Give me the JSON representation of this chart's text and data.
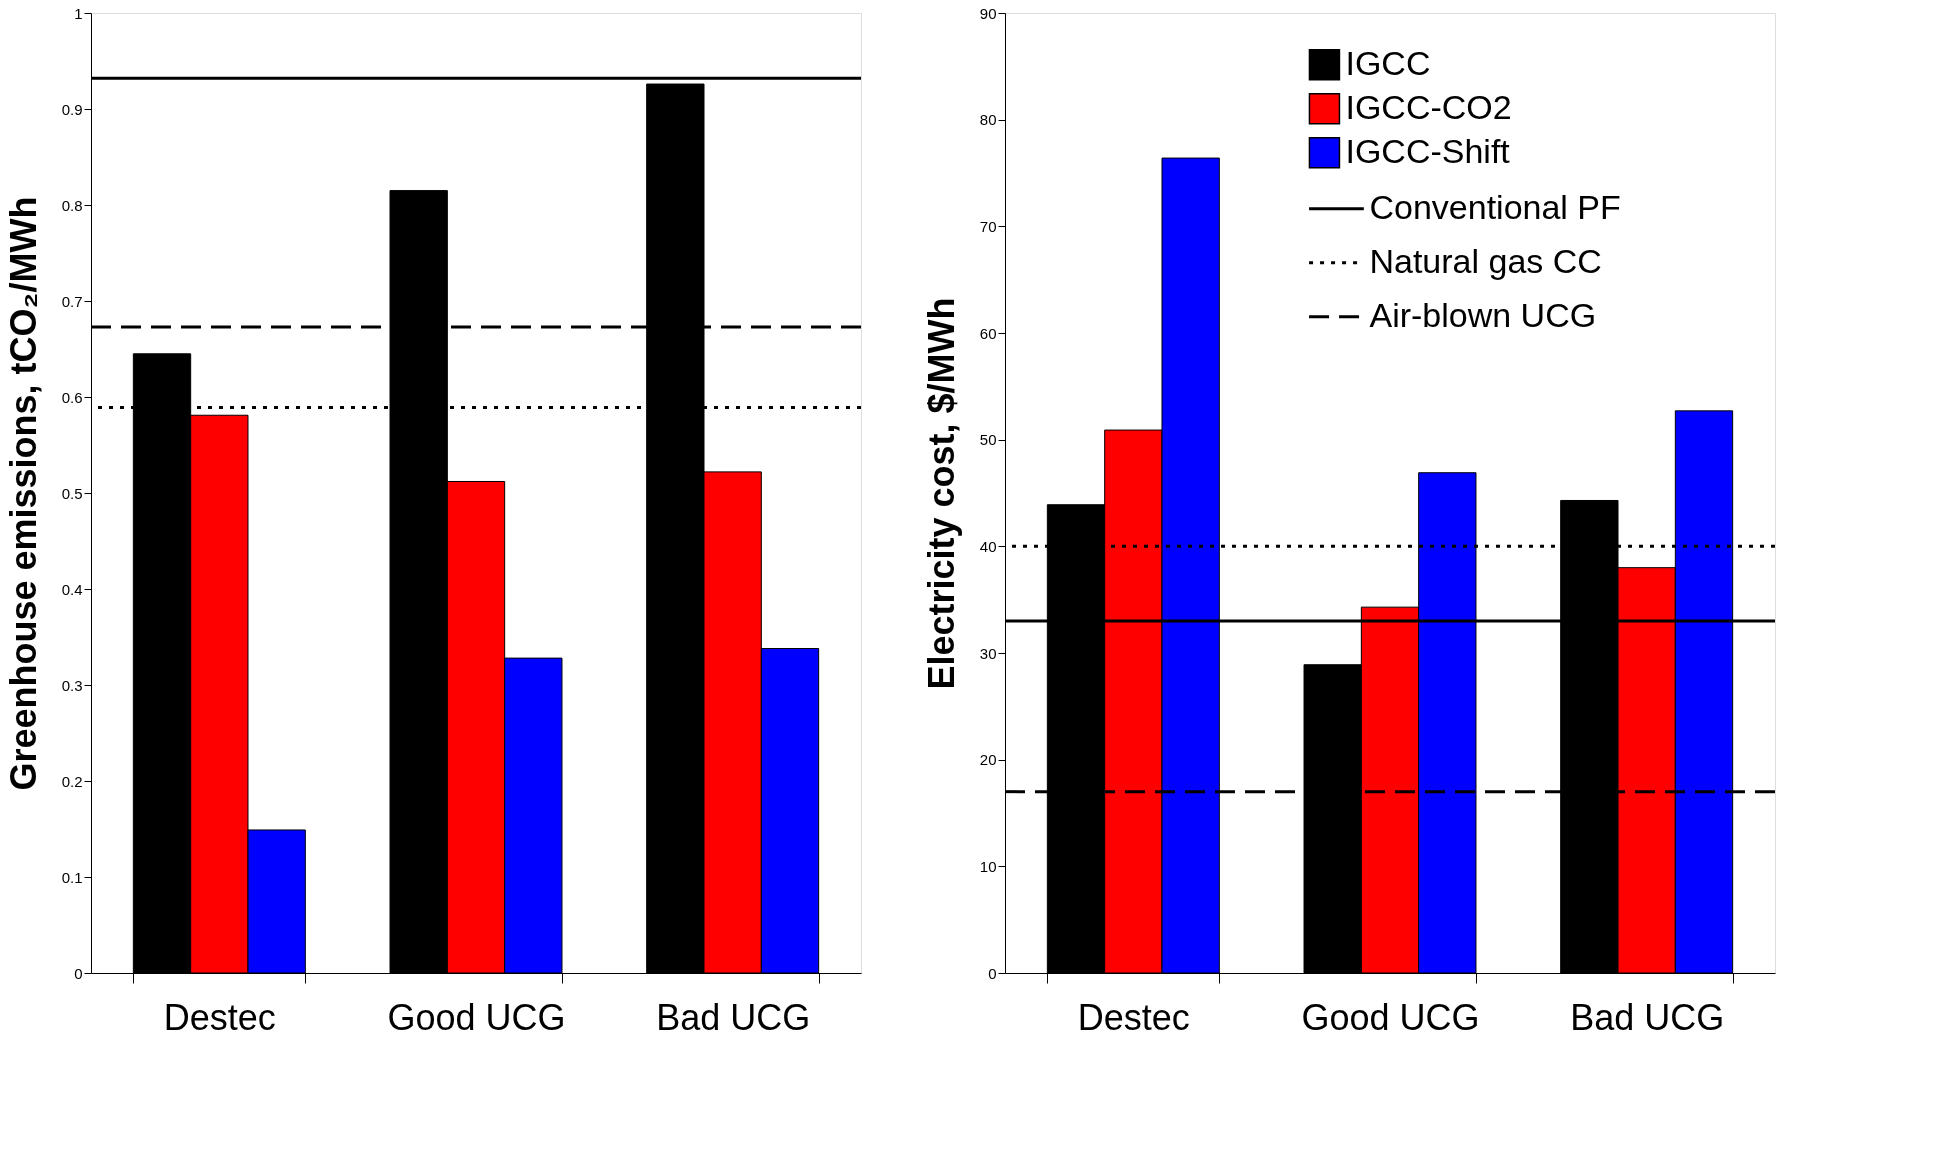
{
  "chart_data": [
    {
      "type": "bar",
      "ylabel": "Greenhouse emissions, tCO₂/MWh",
      "categories": [
        "Destec",
        "Good UCG",
        "Bad UCG"
      ],
      "series": [
        {
          "color": "#000000",
          "values": [
            0.645,
            0.815,
            0.926
          ]
        },
        {
          "color": "#ff0000",
          "values": [
            0.581,
            0.512,
            0.522
          ]
        },
        {
          "color": "#0000ff",
          "values": [
            0.149,
            0.328,
            0.338
          ]
        }
      ],
      "ylim": [
        0,
        1
      ],
      "yticks": [
        0,
        0.1,
        0.2,
        0.3,
        0.4,
        0.5,
        0.6,
        0.7,
        0.8,
        0.9,
        1
      ],
      "ref_lines": [
        {
          "axis": "y",
          "value": 0.932,
          "line_style": "solid",
          "color": "#000000"
        },
        {
          "axis": "y",
          "value": 0.589,
          "line_style": "dotted",
          "color": "#000000"
        },
        {
          "axis": "y",
          "value": 0.673,
          "line_style": "dashed",
          "color": "#000000"
        }
      ],
      "grid": false,
      "legend": false
    },
    {
      "type": "bar",
      "ylabel": "Electricity cost,  $/MWh",
      "categories": [
        "Destec",
        "Good UCG",
        "Bad UCG"
      ],
      "series": [
        {
          "name": "IGCC",
          "color": "#000000",
          "values": [
            43.9,
            28.9,
            44.3
          ]
        },
        {
          "name": "IGCC-CO2",
          "color": "#ff0000",
          "values": [
            50.9,
            34.3,
            38.0
          ]
        },
        {
          "name": "IGCC-Shift",
          "color": "#0000ff",
          "values": [
            76.4,
            46.9,
            52.7
          ]
        }
      ],
      "ylim": [
        0,
        90
      ],
      "yticks": [
        0,
        10,
        20,
        30,
        40,
        50,
        60,
        70,
        80,
        90
      ],
      "ref_lines": [
        {
          "axis": "y",
          "value": 33.0,
          "label": "Conventional PF",
          "line_style": "solid",
          "color": "#000000"
        },
        {
          "axis": "y",
          "value": 40,
          "label": "Natural gas CC",
          "line_style": "dotted",
          "color": "#000000"
        },
        {
          "axis": "y",
          "value": 17.0,
          "label": "Air-blown UCG",
          "line_style": "dashed",
          "color": "#000000"
        }
      ],
      "grid": false,
      "legend": "top right"
    }
  ]
}
